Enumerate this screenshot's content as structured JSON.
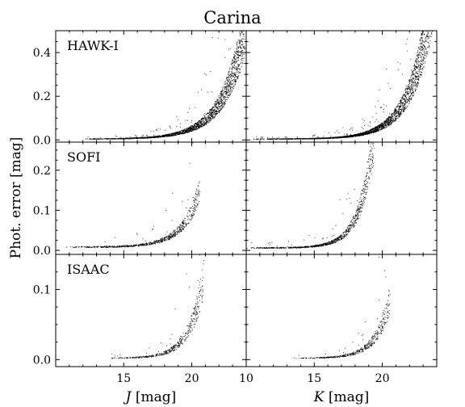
{
  "chart_data": {
    "type": "scatter",
    "title": "Carina",
    "ylabel": "Phot. error [mag]",
    "columns": [
      {
        "id": "J",
        "xlabel_var": "J",
        "xlabel_unit": " [mag]",
        "xlim": [
          10,
          24
        ],
        "xticks": [
          15,
          20
        ]
      },
      {
        "id": "K",
        "xlabel_var": "K",
        "xlabel_unit": " [mag]",
        "xlim": [
          10,
          24
        ],
        "xticks": [
          10,
          15,
          20
        ]
      }
    ],
    "rows": [
      {
        "label": "HAWK-I",
        "ylim": [
          -0.01,
          0.5
        ],
        "yticks": [
          0.0,
          0.2,
          0.4
        ],
        "ytick_labels": [
          "0.0",
          "0.2",
          "0.4"
        ]
      },
      {
        "label": "SOFI",
        "ylim": [
          -0.01,
          0.27
        ],
        "yticks": [
          0.0,
          0.1,
          0.2
        ],
        "ytick_labels": [
          "0.0",
          "0.1",
          "0.2"
        ]
      },
      {
        "label": "ISAAC",
        "ylim": [
          -0.01,
          0.15
        ],
        "yticks": [
          0.0,
          0.1
        ],
        "ytick_labels": [
          "0.0",
          "0.1"
        ]
      }
    ],
    "panels": [
      {
        "row": 0,
        "col": 0,
        "name": "HAWK-I J",
        "x_range": [
          12.0,
          23.9
        ],
        "curve": {
          "floor": 0.004,
          "a": 0.42,
          "x0": 23.6,
          "k": 0.6
        },
        "n_points": 2200,
        "scatter_spread": 0.25
      },
      {
        "row": 0,
        "col": 1,
        "name": "HAWK-I K",
        "x_range": [
          10.5,
          23.9
        ],
        "curve": {
          "floor": 0.004,
          "a": 0.45,
          "x0": 23.1,
          "k": 0.65
        },
        "n_points": 2600,
        "scatter_spread": 0.25
      },
      {
        "row": 1,
        "col": 0,
        "name": "SOFI J",
        "x_range": [
          10.5,
          20.6
        ],
        "curve": {
          "floor": 0.008,
          "a": 0.13,
          "x0": 20.5,
          "k": 0.75
        },
        "n_points": 700,
        "scatter_spread": 0.2
      },
      {
        "row": 1,
        "col": 1,
        "name": "SOFI K",
        "x_range": [
          10.0,
          19.4
        ],
        "curve": {
          "floor": 0.006,
          "a": 0.25,
          "x0": 19.3,
          "k": 0.95
        },
        "n_points": 900,
        "scatter_spread": 0.2
      },
      {
        "row": 2,
        "col": 0,
        "name": "ISAAC J",
        "x_range": [
          14.0,
          20.9
        ],
        "curve": {
          "floor": 0.002,
          "a": 0.13,
          "x0": 21.0,
          "k": 0.95
        },
        "n_points": 450,
        "scatter_spread": 0.25
      },
      {
        "row": 2,
        "col": 1,
        "name": "ISAAC K",
        "x_range": [
          13.5,
          20.6
        ],
        "curve": {
          "floor": 0.002,
          "a": 0.08,
          "x0": 20.5,
          "k": 0.95
        },
        "n_points": 450,
        "scatter_spread": 0.25
      }
    ],
    "grid": false,
    "legend": "none",
    "point_color": "#000000"
  }
}
